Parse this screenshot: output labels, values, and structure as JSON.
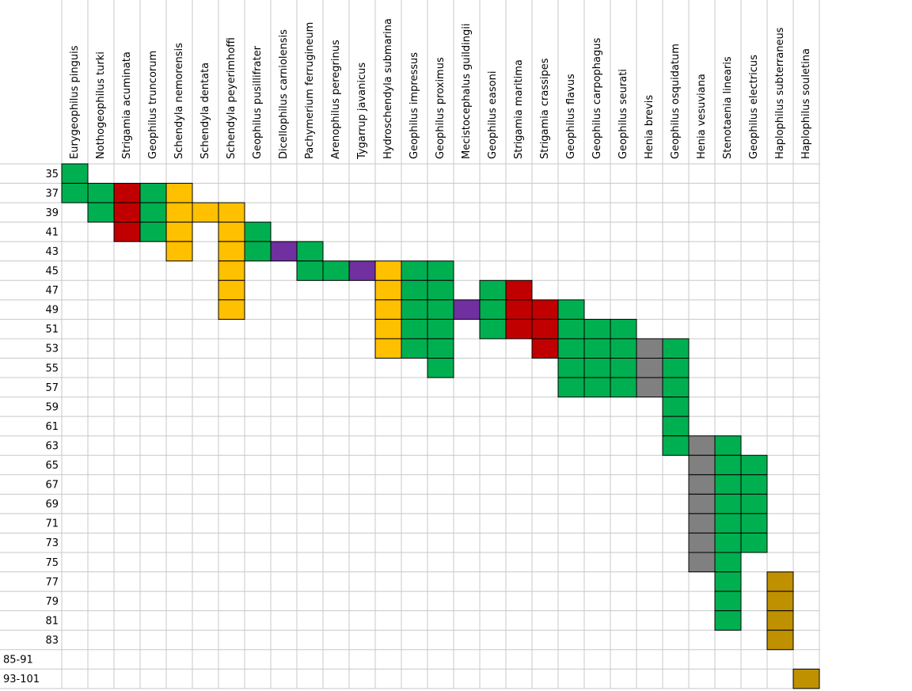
{
  "table": {
    "row_labels": [
      35,
      37,
      39,
      41,
      43,
      45,
      47,
      49,
      51,
      53,
      55,
      57,
      59,
      61,
      63,
      65,
      67,
      69,
      71,
      73,
      75,
      77,
      79,
      81,
      83,
      "85-91",
      "93-101"
    ],
    "columns": [
      {
        "name": "Eurygeophilus pinguis",
        "color": "#00b050",
        "rows": [
          35,
          37
        ]
      },
      {
        "name": "Nothogeophilus turki",
        "color": "#00b050",
        "rows": [
          37,
          39
        ]
      },
      {
        "name": "Strigamia acuminata",
        "color": "#c00000",
        "rows": [
          37,
          39,
          41
        ]
      },
      {
        "name": "Geophilus truncorum",
        "color": "#00b050",
        "rows": [
          37,
          39,
          41
        ]
      },
      {
        "name": "Schendyla nemorensis",
        "color": "#ffc000",
        "rows": [
          37,
          39,
          41,
          43
        ]
      },
      {
        "name": "Schendyla dentata",
        "color": "#ffc000",
        "rows": [
          39
        ]
      },
      {
        "name": "Schendyla peyerimhoffi",
        "color": "#ffc000",
        "rows": [
          39,
          41,
          43,
          45,
          47,
          49
        ]
      },
      {
        "name": "Geophilus pusillifrater",
        "color": "#00b050",
        "rows": [
          41,
          43
        ]
      },
      {
        "name": "Dicellophilus carniolensis",
        "color": "#7030a0",
        "rows": [
          43
        ]
      },
      {
        "name": "Pachymerium ferrugineum",
        "color": "#00b050",
        "rows": [
          43,
          45
        ]
      },
      {
        "name": "Arenophilus peregrinus",
        "color": "#00b050",
        "rows": [
          45
        ]
      },
      {
        "name": "Tygarrup javanicus",
        "color": "#7030a0",
        "rows": [
          45
        ]
      },
      {
        "name": "Hydroschendyla submarina",
        "color": "#ffc000",
        "rows": [
          45,
          47,
          49,
          51,
          53
        ]
      },
      {
        "name": "Geophilus impressus",
        "color": "#00b050",
        "rows": [
          45,
          47,
          49,
          51,
          53
        ]
      },
      {
        "name": "Geophilus proximus",
        "color": "#00b050",
        "rows": [
          45,
          47,
          49,
          51,
          53,
          55
        ]
      },
      {
        "name": "Mecistocephalus guildingii",
        "color": "#7030a0",
        "rows": [
          49
        ]
      },
      {
        "name": "Geophilus easoni",
        "color": "#00b050",
        "rows": [
          47,
          49,
          51
        ]
      },
      {
        "name": "Strigamia maritima",
        "color": "#c00000",
        "rows": [
          47,
          49,
          51
        ]
      },
      {
        "name": "Strigamia crassipes",
        "color": "#c00000",
        "rows": [
          49,
          51,
          53
        ]
      },
      {
        "name": "Geophilus flavus",
        "color": "#00b050",
        "rows": [
          49,
          51,
          53,
          55,
          57
        ]
      },
      {
        "name": "Geophilus carpophagus",
        "color": "#00b050",
        "rows": [
          51,
          53,
          55,
          57
        ]
      },
      {
        "name": "Geophilus seurati",
        "color": "#00b050",
        "rows": [
          51,
          53,
          55,
          57
        ]
      },
      {
        "name": "Henia brevis",
        "color": "#808080",
        "rows": [
          53,
          55,
          57
        ]
      },
      {
        "name": "Geophilus osquidatum",
        "color": "#00b050",
        "rows": [
          53,
          55,
          57,
          59,
          61,
          63
        ]
      },
      {
        "name": "Henia vesuviana",
        "color": "#808080",
        "rows": [
          63,
          65,
          67,
          69,
          71,
          73,
          75
        ]
      },
      {
        "name": "Stenotaenia linearis",
        "color": "#00b050",
        "rows": [
          63,
          65,
          67,
          69,
          71,
          73,
          75,
          77,
          79,
          81
        ]
      },
      {
        "name": "Geophilus electricus",
        "color": "#00b050",
        "rows": [
          65,
          67,
          69,
          71,
          73
        ]
      },
      {
        "name": "Haplophilus subterraneus",
        "color": "#bf9000",
        "rows": [
          77,
          79,
          81,
          83
        ]
      },
      {
        "name": "Haplophilus souletina",
        "color": "#bf9000",
        "rows": [
          "93-101"
        ]
      }
    ]
  }
}
